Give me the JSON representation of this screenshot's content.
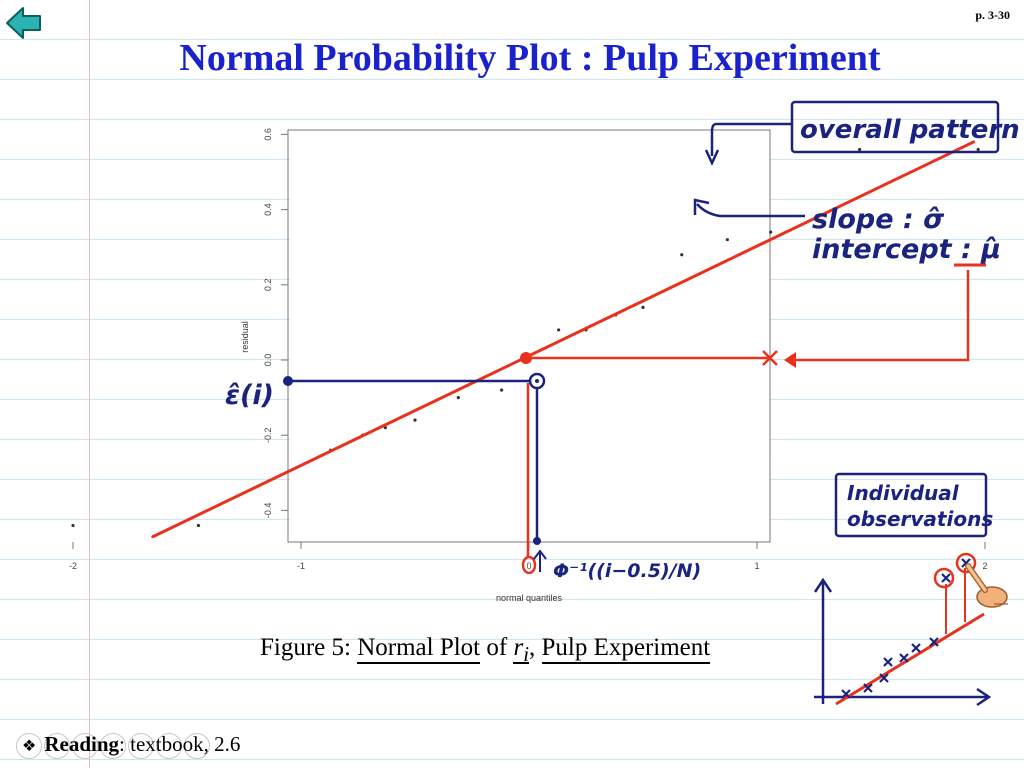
{
  "page": {
    "number": "p. 3-30"
  },
  "slide": {
    "title": "Normal Probability Plot : Pulp Experiment"
  },
  "chart_data": {
    "type": "scatter",
    "xlabel": "normal quantiles",
    "ylabel": "residual",
    "xlim": [
      -2.1,
      2.1
    ],
    "ylim": [
      -0.47,
      0.64
    ],
    "x_ticks": [
      -2,
      -1,
      0,
      1,
      2
    ],
    "y_ticks": [
      -0.4,
      -0.2,
      0.0,
      0.2,
      0.4,
      0.6
    ],
    "x_tick_labels": [
      "-2",
      "-1",
      "0",
      "1",
      "2"
    ],
    "y_tick_labels": [
      "-0.4",
      "-0.2",
      "0.0",
      "0.2",
      "0.4",
      "0.6"
    ],
    "grid": false,
    "points": [
      {
        "x": -2.0,
        "y": -0.44
      },
      {
        "x": -1.45,
        "y": -0.44
      },
      {
        "x": -0.87,
        "y": -0.24
      },
      {
        "x": -0.73,
        "y": -0.2
      },
      {
        "x": -0.63,
        "y": -0.18
      },
      {
        "x": -0.5,
        "y": -0.16
      },
      {
        "x": -0.31,
        "y": -0.1
      },
      {
        "x": -0.12,
        "y": -0.08
      },
      {
        "x": 0.13,
        "y": 0.08
      },
      {
        "x": 0.25,
        "y": 0.08
      },
      {
        "x": 0.38,
        "y": 0.12
      },
      {
        "x": 0.5,
        "y": 0.14
      },
      {
        "x": 0.67,
        "y": 0.28
      },
      {
        "x": 0.87,
        "y": 0.32
      },
      {
        "x": 1.06,
        "y": 0.34
      },
      {
        "x": 1.45,
        "y": 0.56
      },
      {
        "x": 1.97,
        "y": 0.56
      }
    ],
    "fit_line": {
      "x": [
        -1.65,
        1.95
      ],
      "y": [
        -0.47,
        0.58
      ]
    }
  },
  "annotations": {
    "overall_pattern": "overall pattern",
    "slope": "slope : σ̂",
    "intercept": "intercept : μ̂",
    "epsilon_label": "ε̂(i)",
    "quantile_label": "Φ⁻¹((i−0.5)/N)",
    "individual_observations_line1": "Individual",
    "individual_observations_line2": "observations"
  },
  "caption": {
    "prefix": "Figure 5:",
    "normal_plot": "Normal Plot",
    "of": "of",
    "r": "r",
    "sub": "i",
    "pulp": "Pulp Experiment"
  },
  "reading": {
    "bullet": "❖",
    "label": "Reading",
    "text": ": textbook, 2.6"
  },
  "colors": {
    "title": "#1a22cc",
    "ink_blue": "#1a237e",
    "ink_red": "#e8321e",
    "back_arrow": "#2bb3b3"
  }
}
